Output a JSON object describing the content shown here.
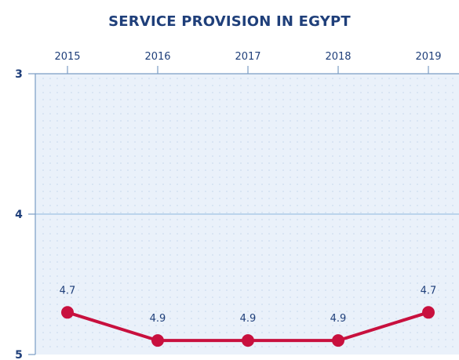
{
  "chart_data": {
    "type": "line",
    "title": "SERVICE PROVISION IN EGYPT",
    "categories": [
      "2015",
      "2016",
      "2017",
      "2018",
      "2019"
    ],
    "series": [
      {
        "values": [
          4.7,
          4.9,
          4.9,
          4.9,
          4.7
        ]
      }
    ],
    "data_labels": [
      "4.7",
      "4.9",
      "4.9",
      "4.9",
      "4.7"
    ],
    "y_ticks": [
      "3",
      "4",
      "5"
    ],
    "ylim": [
      3,
      5
    ],
    "y_axis_inverted": true,
    "x_axis_position": "top",
    "grid": "dotted",
    "xlabel": "",
    "ylabel": "",
    "colors": {
      "title": "#1f3f7a",
      "axis_text": "#1f3f7a",
      "line": "#c8103e",
      "plot_bg": "#eaf1fa",
      "grid_line": "#8fb6dd",
      "dot_grid": "#c4d6ec",
      "axis": "#7a9cc4"
    }
  }
}
